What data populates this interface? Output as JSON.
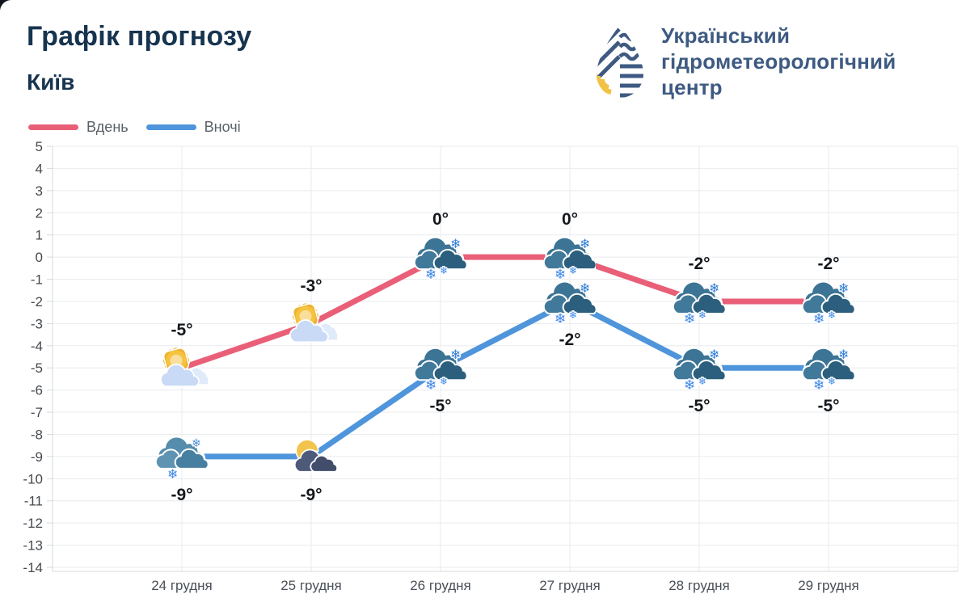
{
  "header": {
    "title": "Графік прогнозу",
    "city": "Київ"
  },
  "org": {
    "lines": [
      "Український",
      "гідрометеорологічний",
      "центр"
    ]
  },
  "legend": {
    "items": [
      {
        "label": "Вдень",
        "color": "#E95F78"
      },
      {
        "label": "Вночі",
        "color": "#4F95DB"
      }
    ]
  },
  "chart_data": {
    "type": "line",
    "categories": [
      "24 грудня",
      "25 грудня",
      "26 грудня",
      "27 грудня",
      "28 грудня",
      "29 грудня"
    ],
    "series": [
      {
        "name": "Вдень",
        "color": "#E95F78",
        "values": [
          -5,
          -3,
          0,
          0,
          -2,
          -2
        ],
        "point_labels": [
          "-5°",
          "-3°",
          "0°",
          "0°",
          "-2°",
          "-2°"
        ],
        "label_side": "above",
        "icons": [
          "sun-behind-cloud",
          "sun-behind-cloud",
          "snow-cloud",
          "snow-cloud",
          "snow-cloud",
          "snow-cloud"
        ]
      },
      {
        "name": "Вночі",
        "color": "#4F95DB",
        "values": [
          -9,
          -9,
          -5,
          -2,
          -5,
          -5
        ],
        "point_labels": [
          "-9°",
          "-9°",
          "-5°",
          "-2°",
          "-5°",
          "-5°"
        ],
        "label_side": "below",
        "icons": [
          "snow-cloud-light",
          "moon-behind-cloud",
          "snow-cloud",
          "snow-cloud",
          "snow-cloud",
          "snow-cloud"
        ]
      }
    ],
    "ylim": [
      -14,
      5
    ],
    "ytick_step": 1,
    "grid": true,
    "legend_position": "top-left",
    "xlabel": "",
    "ylabel": ""
  }
}
